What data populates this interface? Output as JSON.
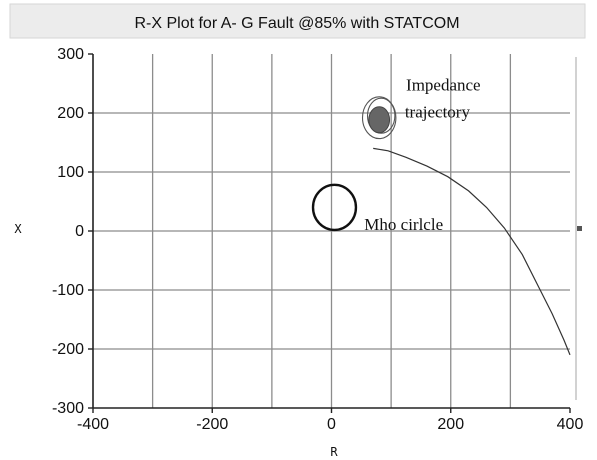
{
  "chart_data": {
    "type": "scatter",
    "title": "R-X Plot  for A- G Fault @85% with STATCOM",
    "xlabel": "R",
    "ylabel": "X",
    "xlim": [
      -400,
      400
    ],
    "ylim": [
      -300,
      300
    ],
    "xticks": [
      -400,
      -200,
      0,
      200,
      400
    ],
    "yticks": [
      -300,
      -200,
      -100,
      0,
      100,
      200,
      300
    ],
    "grid": true,
    "series": [
      {
        "type": "curve",
        "points": [
          [
            70,
            140
          ],
          [
            95,
            136
          ],
          [
            125,
            125
          ],
          [
            160,
            110
          ],
          [
            195,
            92
          ],
          [
            230,
            68
          ],
          [
            260,
            40
          ],
          [
            290,
            5
          ],
          [
            320,
            -40
          ],
          [
            345,
            -90
          ],
          [
            370,
            -140
          ],
          [
            390,
            -185
          ],
          [
            400,
            -210
          ]
        ]
      },
      {
        "type": "circle",
        "center": [
          5,
          40
        ],
        "radius": 40
      },
      {
        "type": "spiral",
        "center": [
          80,
          192
        ],
        "radius": 28
      }
    ],
    "annotations": [
      {
        "text": "Impedance",
        "x": 125,
        "y": 238
      },
      {
        "text": "trajectory",
        "x": 123,
        "y": 192
      },
      {
        "text": "Mho cirlcle",
        "x": 55,
        "y": 2
      }
    ]
  }
}
